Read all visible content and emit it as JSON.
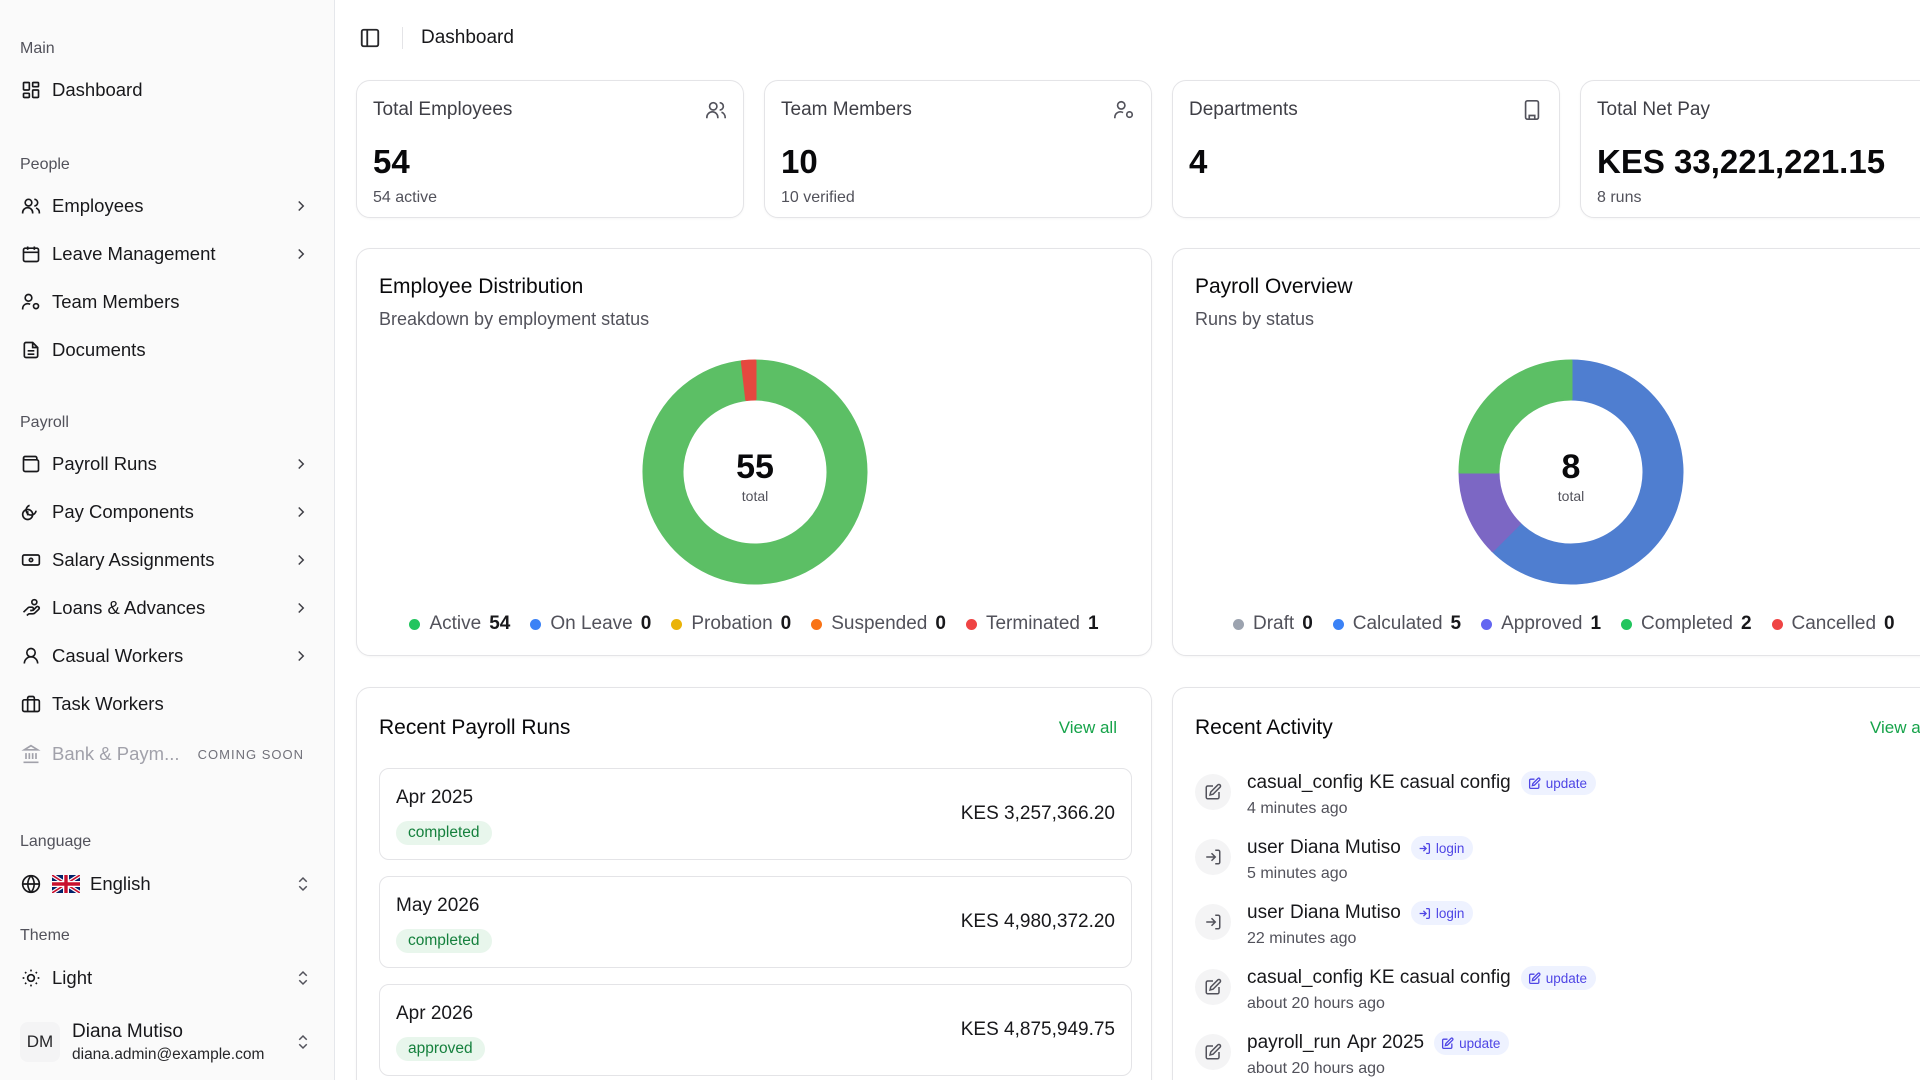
{
  "sidebar": {
    "sections": {
      "main": "Main",
      "people": "People",
      "payroll": "Payroll",
      "language": "Language",
      "theme": "Theme"
    },
    "items": {
      "dashboard": "Dashboard",
      "employees": "Employees",
      "leave": "Leave Management",
      "team": "Team Members",
      "documents": "Documents",
      "payroll_runs": "Payroll Runs",
      "pay_components": "Pay Components",
      "salary_assignments": "Salary Assignments",
      "loans": "Loans & Advances",
      "casual_workers": "Casual Workers",
      "task_workers": "Task Workers",
      "bank": "Bank & Paym...",
      "coming_soon": "COMING SOON"
    },
    "language": "English",
    "theme": "Light",
    "user": {
      "initials": "DM",
      "name": "Diana Mutiso",
      "email": "diana.admin@example.com"
    }
  },
  "topbar": {
    "breadcrumb": "Dashboard"
  },
  "stats": [
    {
      "title": "Total Employees",
      "value": "54",
      "sub": "54 active",
      "icon": "users-icon"
    },
    {
      "title": "Team Members",
      "value": "10",
      "sub": "10 verified",
      "icon": "user-cog-icon"
    },
    {
      "title": "Departments",
      "value": "4",
      "sub": "",
      "icon": "building-icon"
    },
    {
      "title": "Total Net Pay",
      "value": "KES 33,221,221.15",
      "sub": "8 runs",
      "icon": ""
    }
  ],
  "employee_distribution": {
    "title": "Employee Distribution",
    "subtitle": "Breakdown by employment status",
    "center_value": "55",
    "center_label": "total",
    "legend": [
      {
        "label": "Active",
        "value": "54",
        "color": "#22c55e"
      },
      {
        "label": "On Leave",
        "value": "0",
        "color": "#3b82f6"
      },
      {
        "label": "Probation",
        "value": "0",
        "color": "#eab308"
      },
      {
        "label": "Suspended",
        "value": "0",
        "color": "#f97316"
      },
      {
        "label": "Terminated",
        "value": "1",
        "color": "#ef4444"
      }
    ]
  },
  "payroll_overview": {
    "title": "Payroll Overview",
    "subtitle": "Runs by status",
    "center_value": "8",
    "center_label": "total",
    "legend": [
      {
        "label": "Draft",
        "value": "0",
        "color": "#9ca3af"
      },
      {
        "label": "Calculated",
        "value": "5",
        "color": "#3b82f6"
      },
      {
        "label": "Approved",
        "value": "1",
        "color": "#6366f1"
      },
      {
        "label": "Completed",
        "value": "2",
        "color": "#22c55e"
      },
      {
        "label": "Cancelled",
        "value": "0",
        "color": "#ef4444"
      }
    ]
  },
  "chart_data": [
    {
      "type": "pie",
      "categories": [
        "Active",
        "On Leave",
        "Probation",
        "Suspended",
        "Terminated"
      ],
      "values": [
        54,
        0,
        0,
        0,
        1
      ],
      "colors": [
        "#5cbf65",
        "#3b82f6",
        "#eab308",
        "#f97316",
        "#e5483f"
      ]
    },
    {
      "type": "pie",
      "categories": [
        "Draft",
        "Calculated",
        "Approved",
        "Completed",
        "Cancelled"
      ],
      "values": [
        0,
        5,
        1,
        2,
        0
      ],
      "colors": [
        "#9ca3af",
        "#4f7ed0",
        "#7c67c4",
        "#5cbf65",
        "#ef4444"
      ]
    }
  ],
  "recent_runs": {
    "title": "Recent Payroll Runs",
    "view_all": "View all",
    "items": [
      {
        "name": "Apr 2025",
        "status": "completed",
        "amount": "KES 3,257,366.20"
      },
      {
        "name": "May 2026",
        "status": "completed",
        "amount": "KES 4,980,372.20"
      },
      {
        "name": "Apr 2026",
        "status": "approved",
        "amount": "KES 4,875,949.75"
      }
    ]
  },
  "recent_activity": {
    "title": "Recent Activity",
    "view_all": "View a",
    "items": [
      {
        "type": "casual_config",
        "name": "KE casual config",
        "action": "update",
        "time": "4 minutes ago"
      },
      {
        "type": "user",
        "name": "Diana Mutiso",
        "action": "login",
        "time": "5 minutes ago"
      },
      {
        "type": "user",
        "name": "Diana Mutiso",
        "action": "login",
        "time": "22 minutes ago"
      },
      {
        "type": "casual_config",
        "name": "KE casual config",
        "action": "update",
        "time": "about 20 hours ago"
      },
      {
        "type": "payroll_run",
        "name": "Apr 2025",
        "action": "update",
        "time": "about 20 hours ago"
      }
    ]
  }
}
